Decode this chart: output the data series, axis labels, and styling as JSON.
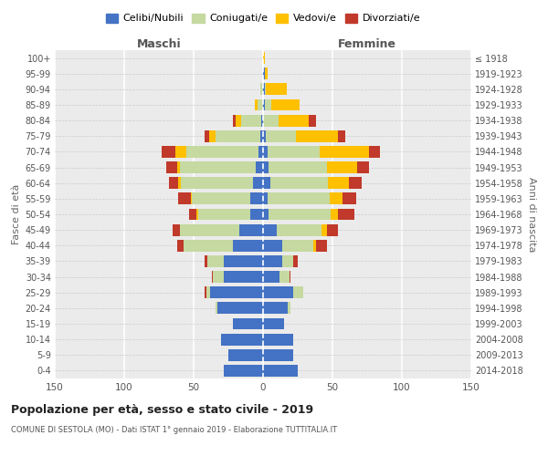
{
  "age_groups": [
    "0-4",
    "5-9",
    "10-14",
    "15-19",
    "20-24",
    "25-29",
    "30-34",
    "35-39",
    "40-44",
    "45-49",
    "50-54",
    "55-59",
    "60-64",
    "65-69",
    "70-74",
    "75-79",
    "80-84",
    "85-89",
    "90-94",
    "95-99",
    "100+"
  ],
  "birth_years": [
    "2014-2018",
    "2009-2013",
    "2004-2008",
    "1999-2003",
    "1994-1998",
    "1989-1993",
    "1984-1988",
    "1979-1983",
    "1974-1978",
    "1969-1973",
    "1964-1968",
    "1959-1963",
    "1954-1958",
    "1949-1953",
    "1944-1948",
    "1939-1943",
    "1934-1938",
    "1929-1933",
    "1924-1928",
    "1919-1923",
    "≤ 1918"
  ],
  "male": {
    "celibi": [
      28,
      25,
      30,
      22,
      33,
      38,
      28,
      28,
      22,
      17,
      9,
      9,
      7,
      5,
      3,
      2,
      1,
      0,
      0,
      0,
      0
    ],
    "coniugati": [
      0,
      0,
      0,
      0,
      1,
      3,
      8,
      12,
      35,
      43,
      38,
      42,
      52,
      55,
      52,
      32,
      15,
      4,
      2,
      0,
      0
    ],
    "vedovi": [
      0,
      0,
      0,
      0,
      0,
      0,
      0,
      0,
      0,
      0,
      1,
      1,
      2,
      2,
      8,
      5,
      4,
      2,
      0,
      0,
      0
    ],
    "divorziati": [
      0,
      0,
      0,
      0,
      0,
      1,
      1,
      2,
      5,
      5,
      5,
      9,
      7,
      8,
      10,
      3,
      2,
      0,
      0,
      0,
      0
    ]
  },
  "female": {
    "nubili": [
      25,
      22,
      22,
      15,
      18,
      22,
      12,
      14,
      14,
      10,
      4,
      3,
      5,
      4,
      3,
      2,
      0,
      1,
      1,
      1,
      0
    ],
    "coniugate": [
      0,
      0,
      0,
      0,
      2,
      7,
      7,
      8,
      22,
      32,
      45,
      45,
      42,
      42,
      38,
      22,
      11,
      5,
      1,
      0,
      0
    ],
    "vedove": [
      0,
      0,
      0,
      0,
      0,
      0,
      0,
      0,
      2,
      4,
      5,
      9,
      15,
      22,
      35,
      30,
      22,
      20,
      15,
      2,
      1
    ],
    "divorziate": [
      0,
      0,
      0,
      0,
      0,
      0,
      1,
      3,
      8,
      8,
      12,
      10,
      9,
      8,
      8,
      5,
      5,
      0,
      0,
      0,
      0
    ]
  },
  "colors": {
    "celibi": "#4472c4",
    "coniugati": "#c5d9a0",
    "vedovi": "#ffc000",
    "divorziati": "#c0392b"
  },
  "title": "Popolazione per età, sesso e stato civile - 2019",
  "subtitle": "COMUNE DI SESTOLA (MO) - Dati ISTAT 1° gennaio 2019 - Elaborazione TUTTITALIA.IT",
  "xlabel_left": "Maschi",
  "xlabel_right": "Femmine",
  "ylabel_left": "Fasce di età",
  "ylabel_right": "Anni di nascita",
  "legend_labels": [
    "Celibi/Nubili",
    "Coniugati/e",
    "Vedovi/e",
    "Divorziati/e"
  ],
  "xlim": 150,
  "bg_color": "#ebebeb"
}
